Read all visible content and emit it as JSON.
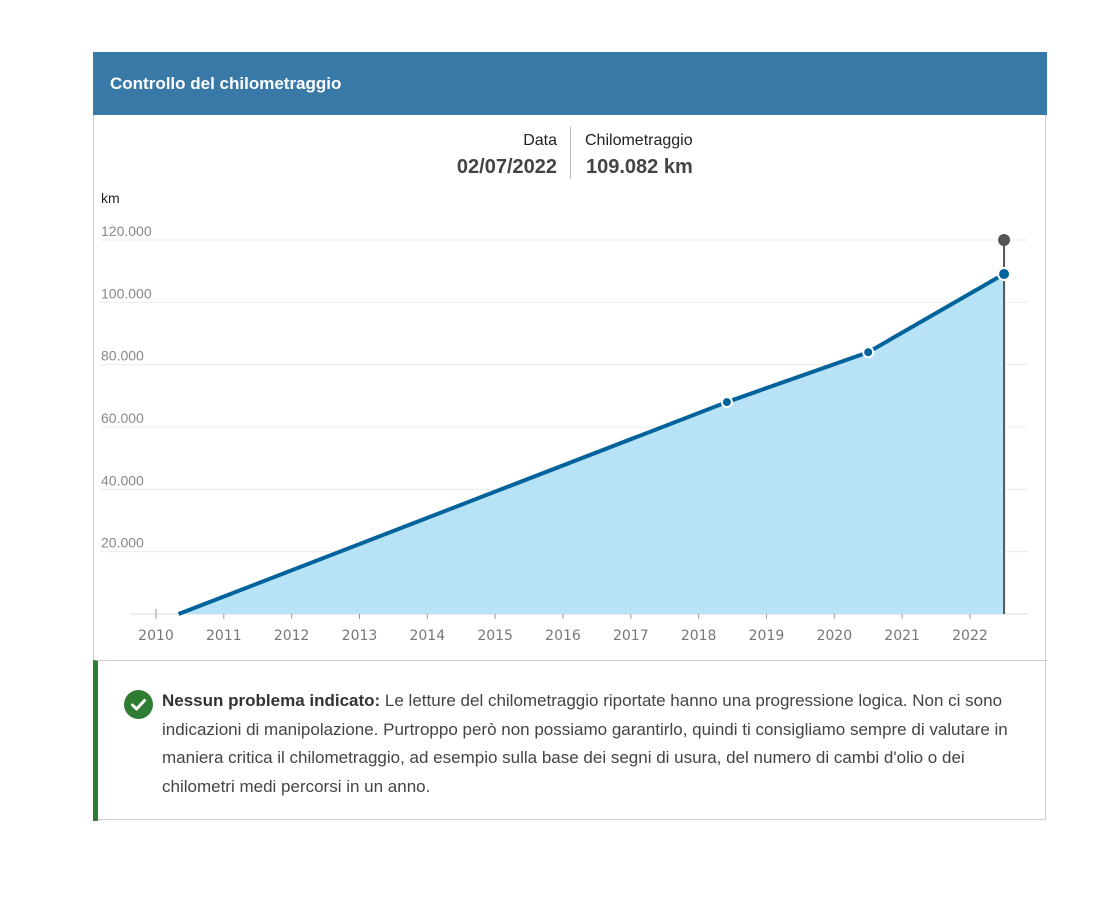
{
  "header": {
    "title": "Controllo del chilometraggio"
  },
  "readout": {
    "date_label": "Data",
    "date_value": "02/07/2022",
    "km_label": "Chilometraggio",
    "km_value": "109.082 km"
  },
  "chart_data": {
    "type": "area",
    "ylabel": "km",
    "ylim": [
      0,
      120000
    ],
    "xlim": [
      2010,
      2022.6
    ],
    "y_ticks": [
      {
        "value": 20000,
        "label": "20.000"
      },
      {
        "value": 40000,
        "label": "40.000"
      },
      {
        "value": 60000,
        "label": "60.000"
      },
      {
        "value": 80000,
        "label": "80.000"
      },
      {
        "value": 100000,
        "label": "100.000"
      },
      {
        "value": 120000,
        "label": "120.000"
      }
    ],
    "x_ticks": [
      "2010",
      "2011",
      "2012",
      "2013",
      "2014",
      "2015",
      "2016",
      "2017",
      "2018",
      "2019",
      "2020",
      "2021",
      "2022"
    ],
    "grid": true,
    "points": [
      {
        "date": "2010-05",
        "km": 0
      },
      {
        "date": "2018-06",
        "km": 68000
      },
      {
        "date": "2020-07",
        "km": 84000
      },
      {
        "date": "2022-07-02",
        "km": 109082
      }
    ],
    "highlighted": {
      "date": "2022-07-02",
      "km": 109082
    },
    "colors": {
      "line": "#00639c",
      "fill": "#b8e3f6",
      "cursor": "#555555",
      "grid": "#ececec"
    }
  },
  "info": {
    "icon": "check-circle-icon",
    "status_color": "#2e7d32",
    "title": "Nessun problema indicato:",
    "text": " Le letture del chilometraggio riportate hanno una progressione logica. Non ci sono indicazioni di manipolazione. Purtroppo però non possiamo garantirlo, quindi ti consigliamo sempre di valutare in maniera critica il chilometraggio, ad esempio sulla base dei segni di usura, del numero di cambi d'olio o dei chilometri medi percorsi in un anno."
  }
}
